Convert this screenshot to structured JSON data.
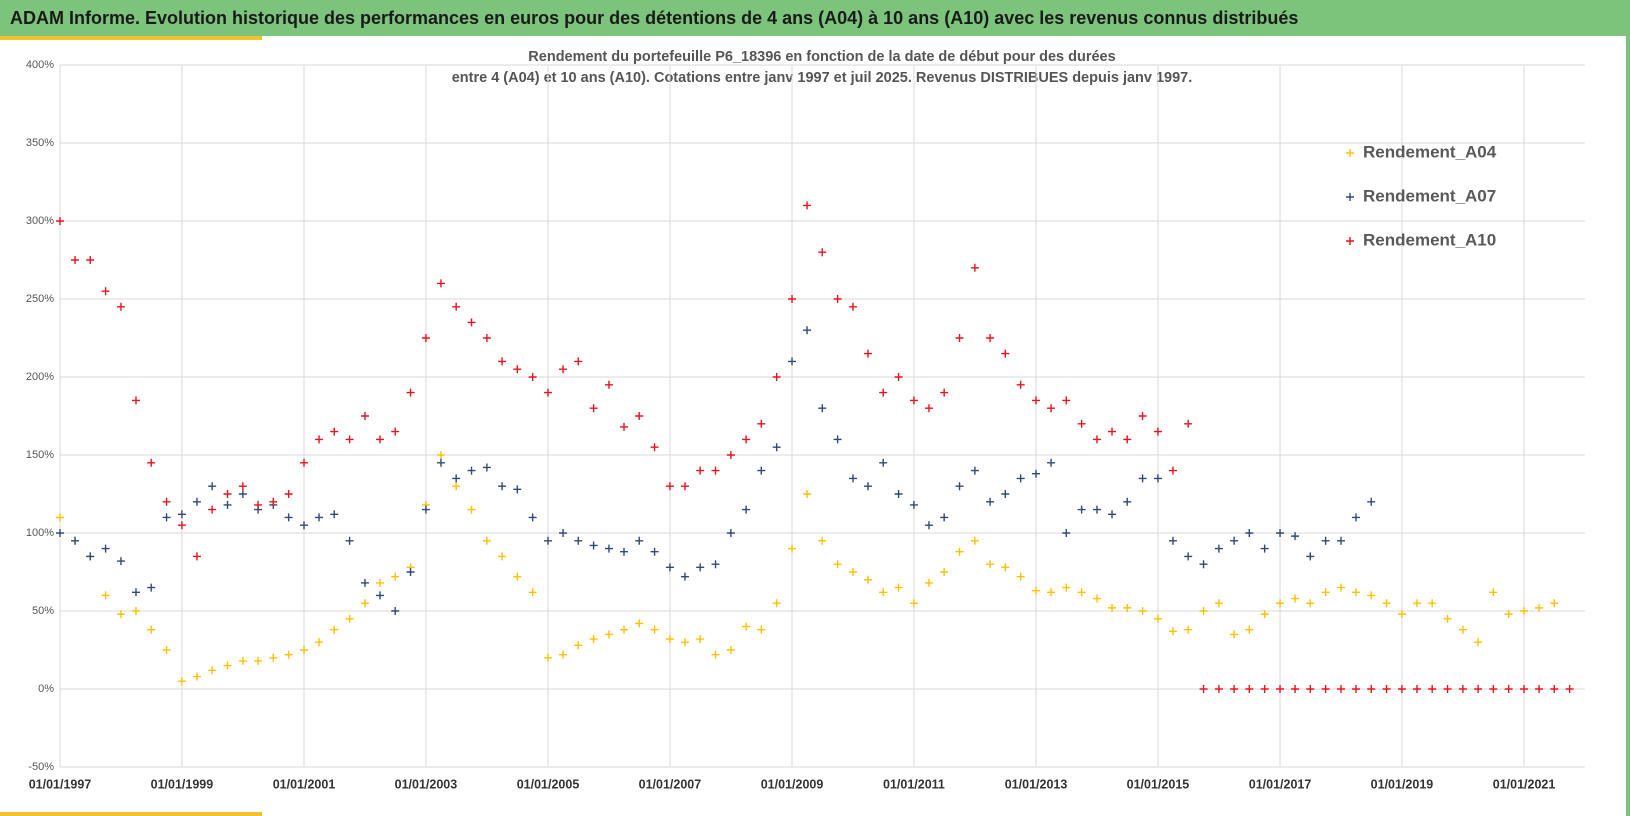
{
  "header": {
    "title": "ADAM Informe. Evolution historique des performances en euros pour des détentions de 4 ans (A04) à 10 ans (A10) avec les revenus connus distribués"
  },
  "chart_data": {
    "type": "scatter",
    "title": "Rendement du portefeuille P6_18396 en fonction de la date de début pour des durées",
    "subtitle": "entre 4 (A04) et 10 ans (A10). Cotations entre janv 1997 et juil 2025. Revenus DISTRIBUES depuis janv 1997.",
    "xlim": [
      "1997-01-01",
      "2022-01-01"
    ],
    "xticks": [
      {
        "value": "1997-01-01",
        "label": "01/01/1997"
      },
      {
        "value": "1999-01-01",
        "label": "01/01/1999"
      },
      {
        "value": "2001-01-01",
        "label": "01/01/2001"
      },
      {
        "value": "2003-01-01",
        "label": "01/01/2003"
      },
      {
        "value": "2005-01-01",
        "label": "01/01/2005"
      },
      {
        "value": "2007-01-01",
        "label": "01/01/2007"
      },
      {
        "value": "2009-01-01",
        "label": "01/01/2009"
      },
      {
        "value": "2011-01-01",
        "label": "01/01/2011"
      },
      {
        "value": "2013-01-01",
        "label": "01/01/2013"
      },
      {
        "value": "2015-01-01",
        "label": "01/01/2015"
      },
      {
        "value": "2017-01-01",
        "label": "01/01/2017"
      },
      {
        "value": "2019-01-01",
        "label": "01/01/2019"
      },
      {
        "value": "2021-01-01",
        "label": "01/01/2021"
      }
    ],
    "ylim": [
      -50,
      400
    ],
    "yticks": [
      {
        "value": -50,
        "label": "-50%"
      },
      {
        "value": 0,
        "label": "0%"
      },
      {
        "value": 50,
        "label": "50%"
      },
      {
        "value": 100,
        "label": "100%"
      },
      {
        "value": 150,
        "label": "150%"
      },
      {
        "value": 200,
        "label": "200%"
      },
      {
        "value": 250,
        "label": "250%"
      },
      {
        "value": 300,
        "label": "300%"
      },
      {
        "value": 350,
        "label": "350%"
      },
      {
        "value": 400,
        "label": "400%"
      }
    ],
    "grid": true,
    "legend": "right",
    "x": [
      "1997-01-01",
      "1997-04-01",
      "1997-07-01",
      "1997-10-01",
      "1998-01-01",
      "1998-04-01",
      "1998-07-01",
      "1998-10-01",
      "1999-01-01",
      "1999-04-01",
      "1999-07-01",
      "1999-10-01",
      "2000-01-01",
      "2000-04-01",
      "2000-07-01",
      "2000-10-01",
      "2001-01-01",
      "2001-04-01",
      "2001-07-01",
      "2001-10-01",
      "2002-01-01",
      "2002-04-01",
      "2002-07-01",
      "2002-10-01",
      "2003-01-01",
      "2003-04-01",
      "2003-07-01",
      "2003-10-01",
      "2004-01-01",
      "2004-04-01",
      "2004-07-01",
      "2004-10-01",
      "2005-01-01",
      "2005-04-01",
      "2005-07-01",
      "2005-10-01",
      "2006-01-01",
      "2006-04-01",
      "2006-07-01",
      "2006-10-01",
      "2007-01-01",
      "2007-04-01",
      "2007-07-01",
      "2007-10-01",
      "2008-01-01",
      "2008-04-01",
      "2008-07-01",
      "2008-10-01",
      "2009-01-01",
      "2009-04-01",
      "2009-07-01",
      "2009-10-01",
      "2010-01-01",
      "2010-04-01",
      "2010-07-01",
      "2010-10-01",
      "2011-01-01",
      "2011-04-01",
      "2011-07-01",
      "2011-10-01",
      "2012-01-01",
      "2012-04-01",
      "2012-07-01",
      "2012-10-01",
      "2013-01-01",
      "2013-04-01",
      "2013-07-01",
      "2013-10-01",
      "2014-01-01",
      "2014-04-01",
      "2014-07-01",
      "2014-10-01",
      "2015-01-01",
      "2015-04-01",
      "2015-07-01",
      "2015-10-01",
      "2016-01-01",
      "2016-04-01",
      "2016-07-01",
      "2016-10-01",
      "2017-01-01",
      "2017-04-01",
      "2017-07-01",
      "2017-10-01",
      "2018-01-01",
      "2018-04-01",
      "2018-07-01",
      "2018-10-01",
      "2019-01-01",
      "2019-04-01",
      "2019-07-01",
      "2019-10-01",
      "2020-01-01",
      "2020-04-01",
      "2020-07-01",
      "2020-10-01",
      "2021-01-01",
      "2021-04-01",
      "2021-07-01",
      "2021-10-01"
    ],
    "series": [
      {
        "name": "Rendement_A04",
        "color": "#ffc000",
        "values": [
          110,
          95,
          85,
          60,
          48,
          50,
          38,
          25,
          5,
          8,
          12,
          15,
          18,
          18,
          20,
          22,
          25,
          30,
          38,
          45,
          55,
          68,
          72,
          78,
          118,
          150,
          130,
          115,
          95,
          85,
          72,
          62,
          20,
          22,
          28,
          32,
          35,
          38,
          42,
          38,
          32,
          30,
          32,
          22,
          25,
          40,
          38,
          55,
          90,
          125,
          95,
          80,
          75,
          70,
          62,
          65,
          55,
          68,
          75,
          88,
          95,
          80,
          78,
          72,
          63,
          62,
          65,
          62,
          58,
          52,
          52,
          50,
          45,
          37,
          38,
          50,
          55,
          35,
          38,
          48,
          55,
          58,
          55,
          62,
          65,
          62,
          60,
          55,
          48,
          55,
          55,
          45,
          38,
          30,
          62,
          48,
          50,
          52,
          55,
          null
        ]
      },
      {
        "name": "Rendement_A07",
        "color": "#2f4a7a",
        "values": [
          100,
          95,
          85,
          90,
          82,
          62,
          65,
          110,
          112,
          120,
          130,
          118,
          125,
          115,
          118,
          110,
          105,
          110,
          112,
          95,
          68,
          60,
          50,
          75,
          115,
          145,
          135,
          140,
          142,
          130,
          128,
          110,
          95,
          100,
          95,
          92,
          90,
          88,
          95,
          88,
          78,
          72,
          78,
          80,
          100,
          115,
          140,
          155,
          210,
          230,
          180,
          160,
          135,
          130,
          145,
          125,
          118,
          105,
          110,
          130,
          140,
          120,
          125,
          135,
          138,
          145,
          100,
          115,
          115,
          112,
          120,
          135,
          135,
          95,
          85,
          80,
          90,
          95,
          100,
          90,
          100,
          98,
          85,
          95,
          95,
          110,
          120,
          null,
          null,
          null,
          null,
          null,
          null,
          null,
          null,
          null,
          null,
          null,
          null,
          null
        ]
      },
      {
        "name": "Rendement_A10",
        "color": "#e8141c",
        "values": [
          300,
          275,
          275,
          255,
          245,
          185,
          145,
          120,
          105,
          85,
          115,
          125,
          130,
          118,
          120,
          125,
          145,
          160,
          165,
          160,
          175,
          160,
          165,
          190,
          225,
          260,
          245,
          235,
          225,
          210,
          205,
          200,
          190,
          205,
          210,
          180,
          195,
          168,
          175,
          155,
          130,
          130,
          140,
          140,
          150,
          160,
          170,
          200,
          250,
          310,
          280,
          250,
          245,
          215,
          190,
          200,
          185,
          180,
          190,
          225,
          270,
          225,
          215,
          195,
          185,
          180,
          185,
          170,
          160,
          165,
          160,
          175,
          165,
          140,
          170,
          0,
          0,
          0,
          0,
          0,
          0,
          0,
          0,
          0,
          0,
          0,
          0,
          0,
          0,
          0,
          0,
          0,
          0,
          0,
          0,
          0,
          0,
          0,
          0,
          0
        ]
      }
    ]
  }
}
